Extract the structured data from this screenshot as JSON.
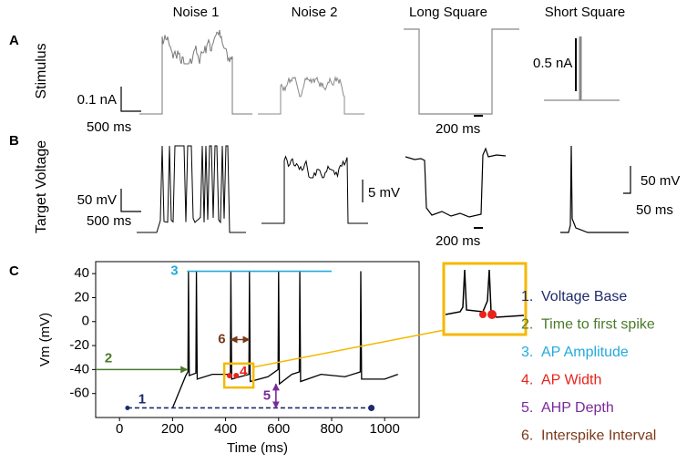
{
  "panels": [
    "A",
    "B",
    "C"
  ],
  "columns": [
    "Noise 1",
    "Noise 2",
    "Long Square",
    "Short Square"
  ],
  "row_labels": [
    "Stimulus",
    "Target Voltage"
  ],
  "scale_bars": [
    "0.1 nA",
    "500 ms",
    "200 ms",
    "0.5 nA",
    "50 mV",
    "500 ms",
    "5 mV",
    "200 ms",
    "50 mV",
    "50 ms"
  ],
  "chart_data": {
    "type": "line",
    "xlabel": "Time (ms)",
    "ylabel": "Vm (mV)",
    "xlim": [
      -90,
      1130
    ],
    "ylim": [
      -80,
      50
    ],
    "xticks": [
      0,
      200,
      400,
      600,
      800,
      1000
    ],
    "yticks": [
      40,
      20,
      0,
      -20,
      -40,
      -60
    ],
    "series": [
      {
        "color": "#000000",
        "x": [
          200,
          250,
          258,
          260,
          263,
          288,
          290,
          293,
          350,
          418,
          420,
          423,
          488,
          490,
          493,
          560,
          598,
          600,
          603,
          650,
          678,
          680,
          683,
          760,
          850,
          908,
          910,
          913,
          1000,
          1050
        ],
        "values": [
          -72,
          -45,
          -42,
          42,
          -45,
          -43,
          42,
          -48,
          -44,
          -44,
          42,
          -48,
          -44,
          42,
          -50,
          -46,
          -40,
          42,
          -52,
          -44,
          -42,
          42,
          -50,
          -44,
          -46,
          -42,
          42,
          -48,
          -48,
          -44
        ]
      }
    ],
    "annotations": [
      {
        "label": "1",
        "color": "#1f2a6b",
        "line": "dashed",
        "x": [
          30,
          950
        ],
        "y": [
          -72,
          -72
        ]
      },
      {
        "label": "2",
        "color": "#4a7a2a",
        "line": "arrow",
        "x": [
          -90,
          255
        ],
        "y": [
          -40,
          -40
        ]
      },
      {
        "label": "3",
        "color": "#22aadd",
        "line": "solid",
        "x": [
          255,
          800
        ],
        "y": [
          42,
          42
        ]
      },
      {
        "label": "4",
        "color": "#e8231b",
        "line": "points",
        "x": [
          415,
          440
        ],
        "y": [
          -45,
          -45
        ]
      },
      {
        "label": "5",
        "color": "#7a2a9a",
        "line": "double-arrow",
        "x": [
          590,
          590
        ],
        "y": [
          -72,
          -52
        ]
      },
      {
        "label": "6",
        "color": "#7a3a1a",
        "line": "double-arrow",
        "x": [
          420,
          490
        ],
        "y": [
          -15,
          -15
        ]
      }
    ]
  },
  "legend": [
    {
      "number": "1.",
      "text": "Voltage Base",
      "color": "#1f2a6b"
    },
    {
      "number": "2.",
      "text": "Time to first spike",
      "color": "#4a7a2a"
    },
    {
      "number": "3.",
      "text": "AP Amplitude",
      "color": "#22aadd"
    },
    {
      "number": "4.",
      "text": "AP Width",
      "color": "#e8231b"
    },
    {
      "number": "5.",
      "text": "AHP Depth",
      "color": "#7a2a9a"
    },
    {
      "number": "6.",
      "text": "Interspike Interval",
      "color": "#7a3a1a"
    }
  ]
}
